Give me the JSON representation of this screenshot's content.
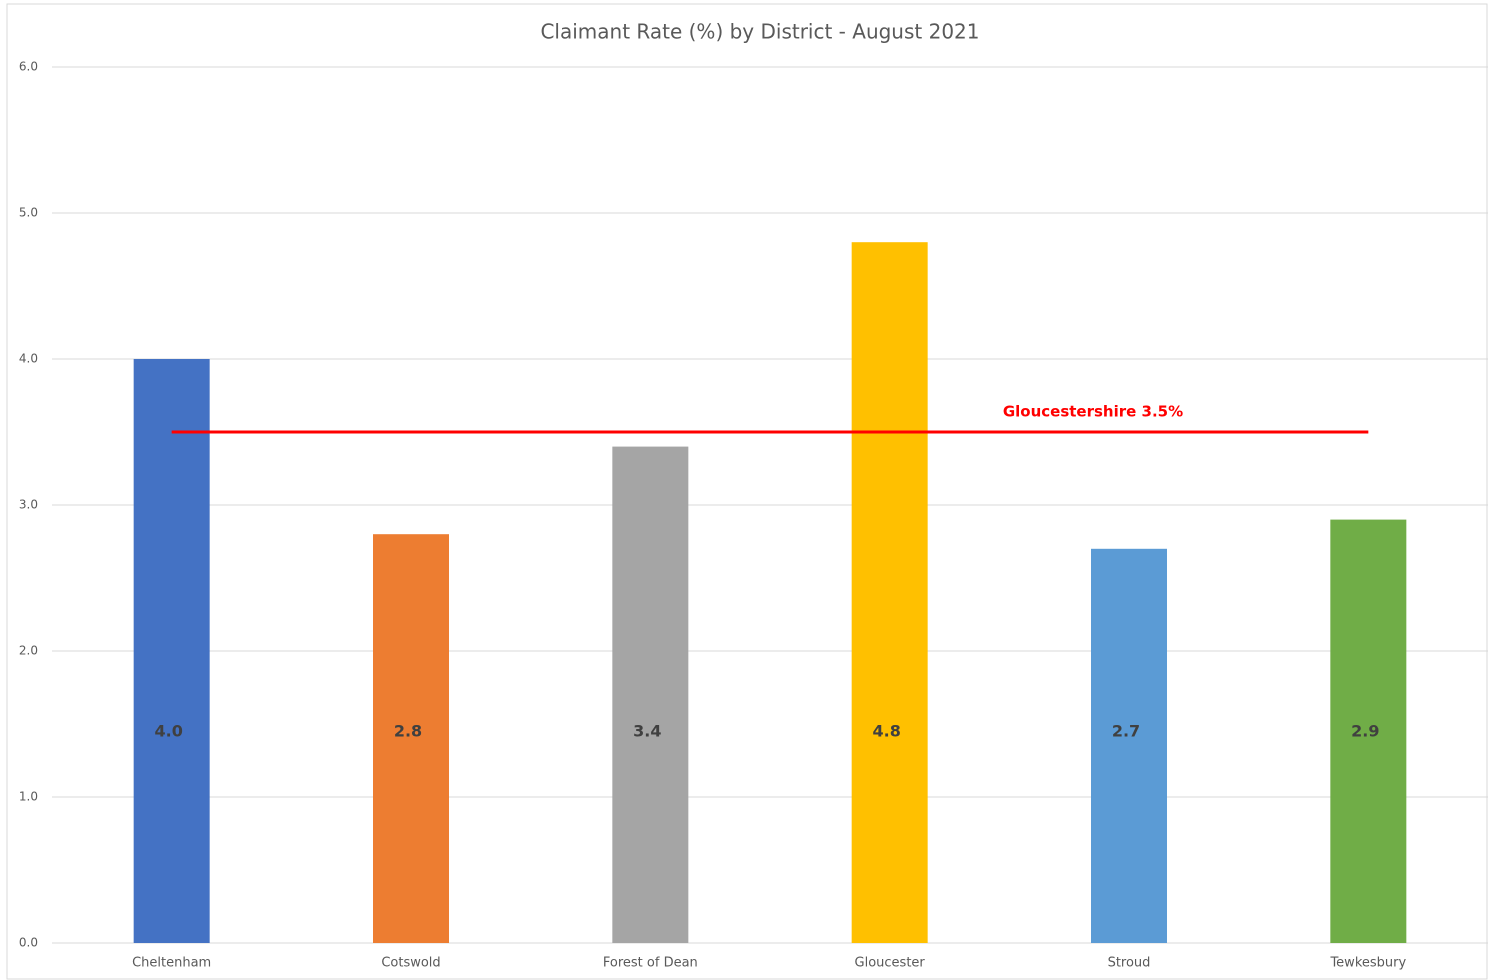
{
  "chart_data": {
    "type": "bar",
    "title": "Claimant Rate (%) by District - August 2021",
    "categories": [
      "Cheltenham",
      "Cotswold",
      "Forest of Dean",
      "Gloucester",
      "Stroud",
      "Tewkesbury"
    ],
    "values": [
      4.0,
      2.8,
      3.4,
      4.8,
      2.7,
      2.9
    ],
    "value_labels": [
      "4.0",
      "2.8",
      "3.4",
      "4.8",
      "2.7",
      "2.9"
    ],
    "colors": [
      "#4472c4",
      "#ed7d31",
      "#a5a5a5",
      "#ffc000",
      "#5b9bd5",
      "#70ad47"
    ],
    "ylim": [
      0,
      6
    ],
    "yticks": [
      {
        "value": 0,
        "label": "0.0"
      },
      {
        "value": 1,
        "label": "1.0"
      },
      {
        "value": 2,
        "label": "2.0"
      },
      {
        "value": 3,
        "label": "3.0"
      },
      {
        "value": 4,
        "label": "4.0"
      },
      {
        "value": 5,
        "label": "5.0"
      },
      {
        "value": 6,
        "label": "6.0"
      }
    ],
    "grid": true,
    "reference_line": {
      "value": 3.5,
      "label": "Gloucestershire 3.5%",
      "color": "#ff0000"
    }
  }
}
